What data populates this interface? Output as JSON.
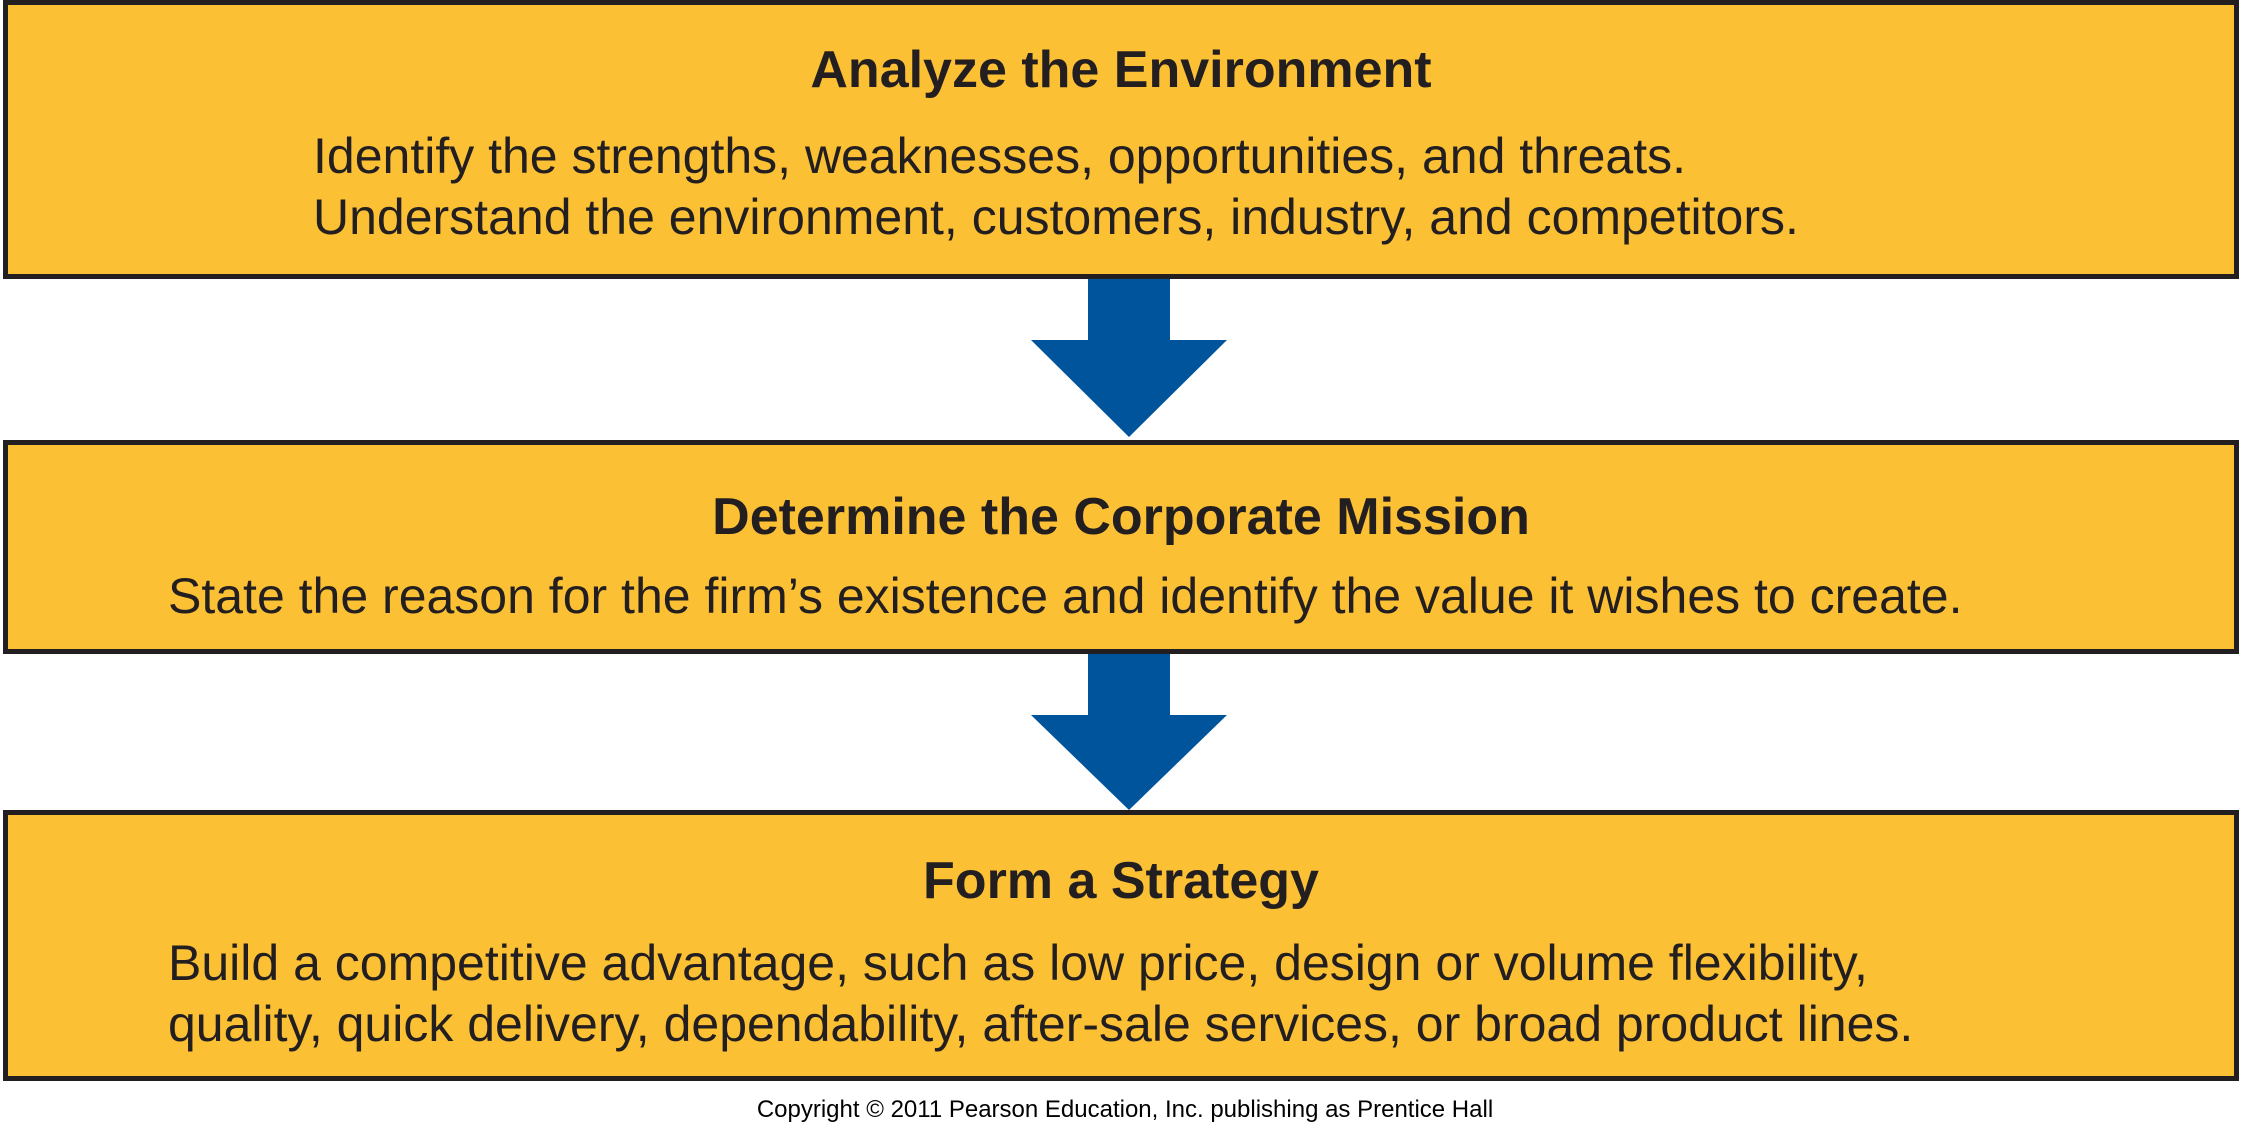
{
  "steps": [
    {
      "title": "Analyze the Environment",
      "lines": [
        "Identify the strengths, weaknesses, opportunities, and threats.",
        "Understand the environment, customers, industry, and competitors."
      ]
    },
    {
      "title": "Determine the Corporate Mission",
      "lines": [
        "State the reason for the firm’s existence and identify the value it wishes to create."
      ]
    },
    {
      "title": "Form a Strategy",
      "lines": [
        "Build a competitive advantage, such as low price, design or volume flexibility,",
        "quality, quick delivery, dependability, after-sale services, or broad product lines."
      ]
    }
  ],
  "arrows": [
    {
      "icon": "down-arrow-icon"
    },
    {
      "icon": "down-arrow-icon"
    }
  ],
  "footer": {
    "copyright": "Copyright © 2011 Pearson Education, Inc. publishing as Prentice Hall"
  },
  "colors": {
    "box_fill": "#fbc034",
    "box_border": "#231f20",
    "arrow": "#00549c",
    "text": "#231f20"
  }
}
